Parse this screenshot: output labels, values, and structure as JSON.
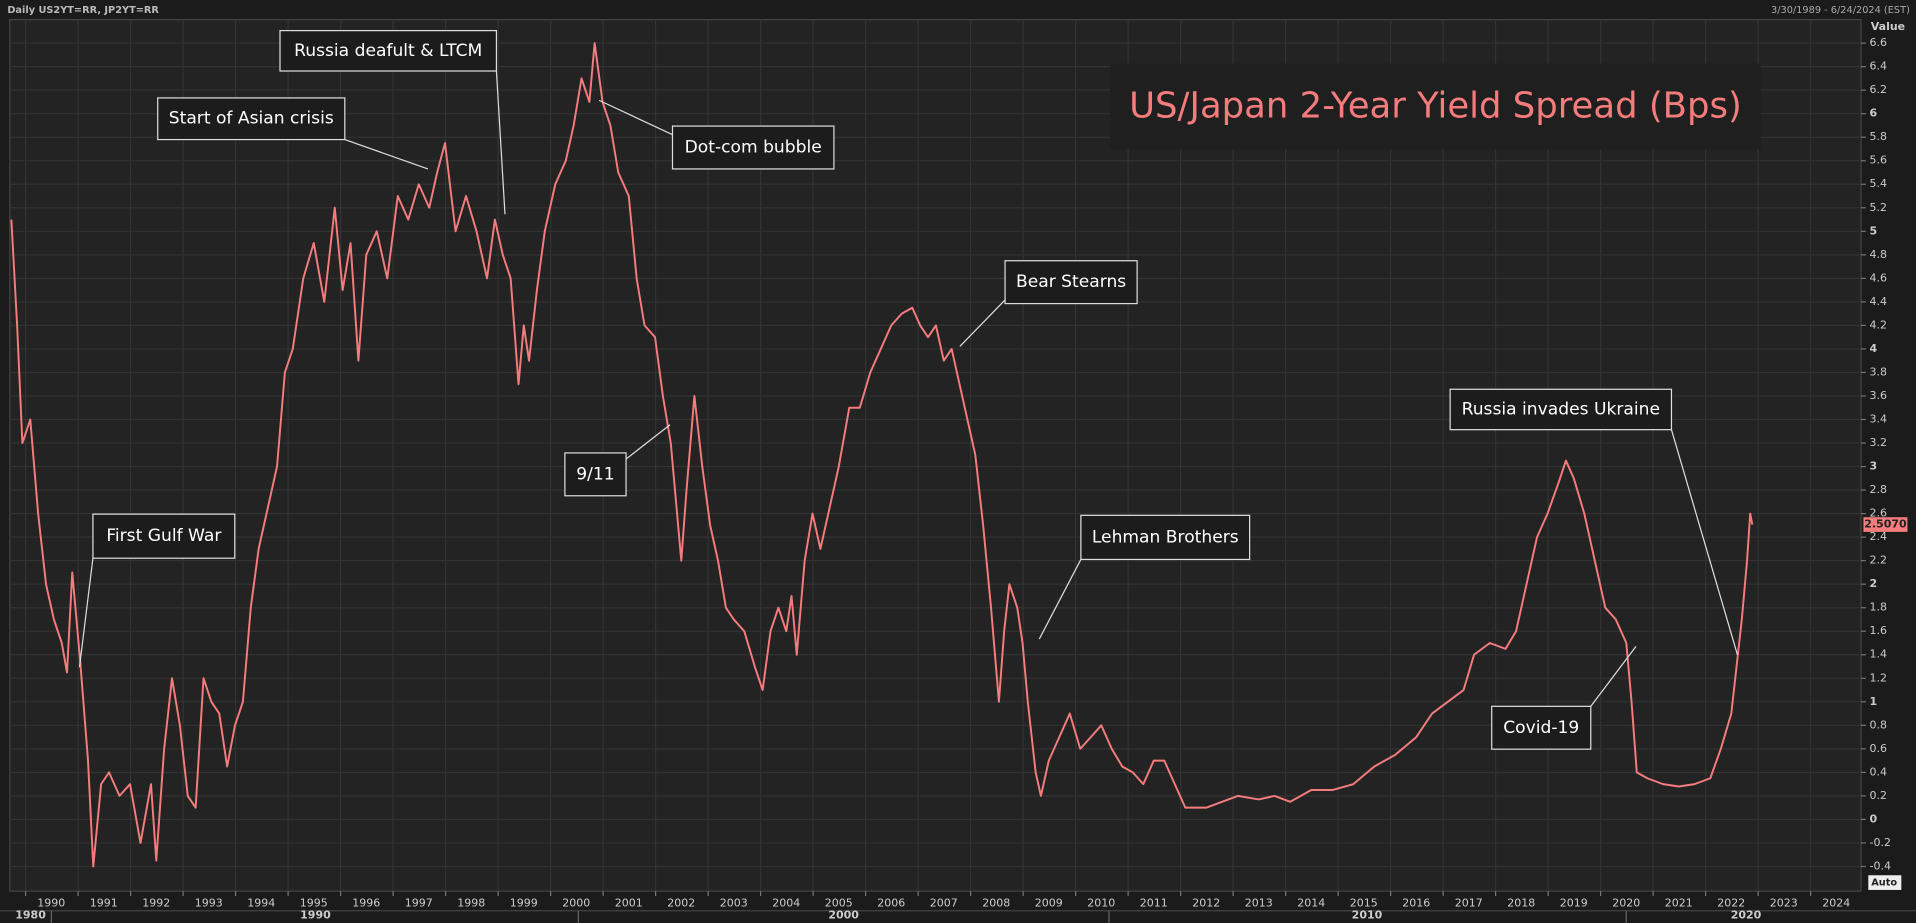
{
  "chart_data": {
    "type": "line",
    "header_left": "Daily US2YT=RR, JP2YT=RR",
    "header_right": "3/30/1989 - 6/24/2024 (EST)",
    "axis_title": "Value",
    "axis_mode": "Auto",
    "title": "US/Japan 2-Year Yield Spread (Bps)",
    "x": [
      1989.24,
      1989.35,
      1989.45,
      1989.6,
      1989.75,
      1989.9,
      1990.05,
      1990.2,
      1990.3,
      1990.4,
      1990.55,
      1990.7,
      1990.8,
      1990.95,
      1991.1,
      1991.3,
      1991.5,
      1991.7,
      1991.9,
      1992.0,
      1992.15,
      1992.3,
      1992.45,
      1992.6,
      1992.75,
      1992.9,
      1993.05,
      1993.2,
      1993.35,
      1993.5,
      1993.65,
      1993.8,
      1993.95,
      1994.1,
      1994.3,
      1994.45,
      1994.6,
      1994.8,
      1995.0,
      1995.2,
      1995.4,
      1995.55,
      1995.7,
      1995.85,
      1996.0,
      1996.2,
      1996.4,
      1996.6,
      1996.8,
      1997.0,
      1997.2,
      1997.35,
      1997.5,
      1997.7,
      1997.9,
      1998.1,
      1998.3,
      1998.45,
      1998.6,
      1998.75,
      1998.9,
      1999.0,
      1999.1,
      1999.25,
      1999.4,
      1999.6,
      1999.8,
      1999.95,
      2000.1,
      2000.25,
      2000.35,
      2000.5,
      2000.65,
      2000.8,
      2001.0,
      2001.15,
      2001.3,
      2001.5,
      2001.65,
      2001.8,
      2001.9,
      2002.0,
      2002.1,
      2002.25,
      2002.4,
      2002.55,
      2002.7,
      2002.85,
      2003.0,
      2003.2,
      2003.4,
      2003.55,
      2003.7,
      2003.85,
      2004.0,
      2004.1,
      2004.2,
      2004.35,
      2004.5,
      2004.65,
      2004.8,
      2005.0,
      2005.2,
      2005.4,
      2005.6,
      2005.8,
      2006.0,
      2006.2,
      2006.4,
      2006.55,
      2006.7,
      2006.85,
      2007.0,
      2007.15,
      2007.3,
      2007.45,
      2007.6,
      2007.75,
      2007.9,
      2008.05,
      2008.15,
      2008.25,
      2008.4,
      2008.5,
      2008.6,
      2008.75,
      2008.85,
      2009.0,
      2009.2,
      2009.4,
      2009.6,
      2009.8,
      2010.0,
      2010.2,
      2010.4,
      2010.6,
      2010.8,
      2011.0,
      2011.2,
      2011.4,
      2011.6,
      2011.8,
      2012.0,
      2012.3,
      2012.6,
      2013.0,
      2013.3,
      2013.6,
      2014.0,
      2014.4,
      2014.8,
      2015.2,
      2015.6,
      2016.0,
      2016.3,
      2016.6,
      2016.9,
      2017.1,
      2017.4,
      2017.7,
      2017.9,
      2018.1,
      2018.3,
      2018.5,
      2018.7,
      2018.85,
      2019.0,
      2019.2,
      2019.4,
      2019.6,
      2019.8,
      2020.0,
      2020.1,
      2020.2,
      2020.4,
      2020.7,
      2021.0,
      2021.3,
      2021.6,
      2021.8,
      2022.0,
      2022.1,
      2022.2,
      2022.3,
      2022.36,
      2022.4
    ],
    "series": [
      {
        "name": "US2YT=RR - JP2YT=RR",
        "color": "#f47c7c",
        "values": [
          5.1,
          4.2,
          3.2,
          3.4,
          2.6,
          2.0,
          1.7,
          1.5,
          1.25,
          2.1,
          1.35,
          0.5,
          -0.4,
          0.3,
          0.4,
          0.2,
          0.3,
          -0.2,
          0.3,
          -0.35,
          0.6,
          1.2,
          0.8,
          0.2,
          0.1,
          1.2,
          1.0,
          0.9,
          0.45,
          0.8,
          1.0,
          1.8,
          2.3,
          2.6,
          3.0,
          3.8,
          4.0,
          4.6,
          4.9,
          4.4,
          5.2,
          4.5,
          4.9,
          3.9,
          4.8,
          5.0,
          4.6,
          5.3,
          5.1,
          5.4,
          5.2,
          5.5,
          5.75,
          5.0,
          5.3,
          5.0,
          4.6,
          5.1,
          4.8,
          4.6,
          3.7,
          4.2,
          3.9,
          4.5,
          5.0,
          5.4,
          5.6,
          5.9,
          6.3,
          6.1,
          6.6,
          6.1,
          5.9,
          5.5,
          5.3,
          4.6,
          4.2,
          4.1,
          3.6,
          3.2,
          2.7,
          2.2,
          2.8,
          3.6,
          3.0,
          2.5,
          2.2,
          1.8,
          1.7,
          1.6,
          1.3,
          1.1,
          1.6,
          1.8,
          1.6,
          1.9,
          1.4,
          2.2,
          2.6,
          2.3,
          2.6,
          3.0,
          3.5,
          3.5,
          3.8,
          4.0,
          4.2,
          4.3,
          4.35,
          4.2,
          4.1,
          4.2,
          3.9,
          4.0,
          3.7,
          3.4,
          3.1,
          2.5,
          1.8,
          1.0,
          1.6,
          2.0,
          1.8,
          1.5,
          1.0,
          0.4,
          0.2,
          0.5,
          0.7,
          0.9,
          0.6,
          0.7,
          0.8,
          0.6,
          0.45,
          0.4,
          0.3,
          0.5,
          0.5,
          0.3,
          0.1,
          0.1,
          0.1,
          0.15,
          0.2,
          0.17,
          0.2,
          0.15,
          0.25,
          0.25,
          0.3,
          0.45,
          0.55,
          0.7,
          0.9,
          1.0,
          1.1,
          1.4,
          1.5,
          1.45,
          1.6,
          2.0,
          2.4,
          2.6,
          2.85,
          3.05,
          2.9,
          2.6,
          2.2,
          1.8,
          1.7,
          1.5,
          1.0,
          0.4,
          0.35,
          0.3,
          0.28,
          0.3,
          0.35,
          0.6,
          0.9,
          1.3,
          1.7,
          2.2,
          2.6,
          2.507
        ]
      }
    ],
    "last_value": 2.507,
    "last_value_label": "2.5070",
    "xlim": [
      1989.21,
      2024.47
    ],
    "xticks": [
      1990,
      1991,
      1992,
      1993,
      1994,
      1995,
      1996,
      1997,
      1998,
      1999,
      2000,
      2001,
      2002,
      2003,
      2004,
      2005,
      2006,
      2007,
      2008,
      2009,
      2010,
      2011,
      2012,
      2013,
      2014,
      2015,
      2016,
      2017,
      2018,
      2019,
      2020,
      2021,
      2022,
      2023,
      2024
    ],
    "decade_labels": [
      "1980",
      "1990",
      "2000",
      "2010",
      "2020"
    ],
    "ylim": [
      -0.61,
      6.8
    ],
    "yticks": [
      -0.4,
      -0.2,
      0,
      0.2,
      0.4,
      0.6,
      0.8,
      1,
      1.2,
      1.4,
      1.6,
      1.8,
      2,
      2.2,
      2.4,
      2.6,
      2.8,
      3,
      3.2,
      3.4,
      3.6,
      3.8,
      4,
      4.2,
      4.4,
      4.6,
      4.8,
      5,
      5.2,
      5.4,
      5.6,
      5.8,
      6,
      6.2,
      6.4,
      6.6
    ],
    "grid": true,
    "annotations": [
      "Russia deafult & LTCM",
      "Start of Asian crisis",
      "Dot-com bubble",
      "9/11",
      "Bear Stearns",
      "Russia invades Ukraine",
      "First Gulf War",
      "Lehman Brothers",
      "Covid-19"
    ]
  }
}
